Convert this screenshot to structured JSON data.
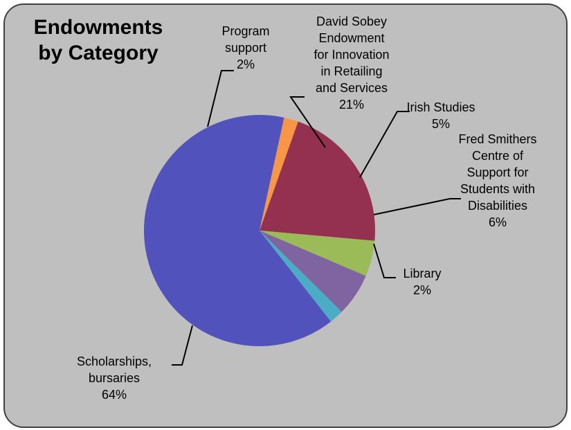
{
  "chart_data": {
    "type": "pie",
    "title": [
      "Endowments",
      "by Category"
    ],
    "slices": [
      {
        "label": [
          "David Sobey",
          "Endowment",
          "for Innovation",
          "in Retailing",
          "and Services"
        ],
        "percent_label": "21%",
        "value": 21,
        "color": "#953150"
      },
      {
        "label": [
          "Irish Studies"
        ],
        "percent_label": "5%",
        "value": 5,
        "color": "#9bbb59"
      },
      {
        "label": [
          "Fred Smithers",
          "Centre of",
          "Support for",
          "Students with",
          "Disabilities"
        ],
        "percent_label": "6%",
        "value": 6,
        "color": "#8064a2"
      },
      {
        "label": [
          "Library"
        ],
        "percent_label": "2%",
        "value": 2,
        "color": "#4bacc6"
      },
      {
        "label": [
          "Scholarships,",
          "bursaries"
        ],
        "percent_label": "64%",
        "value": 64,
        "color": "#5252bc"
      },
      {
        "label": [
          "Program",
          "support"
        ],
        "percent_label": "2%",
        "value": 2,
        "color": "#f79646"
      }
    ],
    "legend": "none"
  }
}
